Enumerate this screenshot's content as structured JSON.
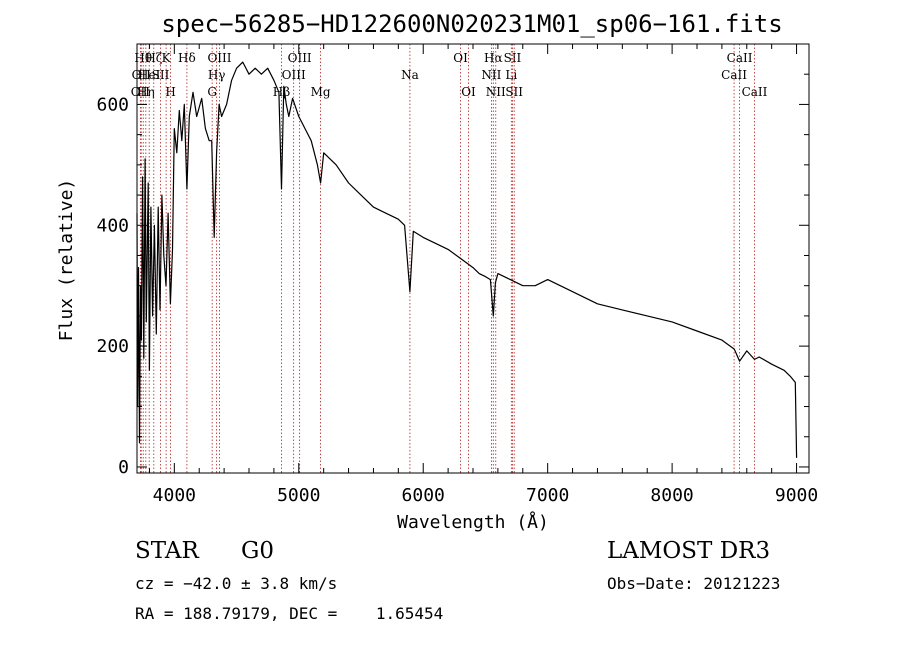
{
  "chart_data": {
    "type": "line",
    "title": "spec−56285−HD122600N020231M01_sp06−161.fits",
    "xlabel": "Wavelength (Å)",
    "ylabel": "Flux (relative)",
    "xlim": [
      3700,
      9100
    ],
    "ylim": [
      -10,
      700
    ],
    "x_ticks": [
      4000,
      5000,
      6000,
      7000,
      8000,
      9000
    ],
    "x_tick_labels": [
      "4000",
      "5000",
      "6000",
      "7000",
      "8000",
      "9000"
    ],
    "y_ticks": [
      0,
      200,
      400,
      600
    ],
    "y_tick_labels": [
      "0",
      "200",
      "400",
      "600"
    ],
    "x_minor_step": 200,
    "y_minor_step": 50,
    "grid": false,
    "line_color": "#000000",
    "marker_color": "#b22222",
    "spectrum": {
      "x": [
        3700,
        3705,
        3712,
        3720,
        3728,
        3735,
        3745,
        3755,
        3765,
        3775,
        3790,
        3800,
        3812,
        3825,
        3840,
        3855,
        3870,
        3885,
        3900,
        3915,
        3933,
        3950,
        3968,
        3985,
        4000,
        4020,
        4040,
        4060,
        4080,
        4101,
        4120,
        4150,
        4180,
        4220,
        4250,
        4280,
        4300,
        4320,
        4340,
        4360,
        4380,
        4420,
        4460,
        4500,
        4550,
        4600,
        4650,
        4700,
        4750,
        4800,
        4840,
        4861,
        4880,
        4900,
        4920,
        4950,
        5000,
        5050,
        5100,
        5150,
        5175,
        5200,
        5300,
        5400,
        5500,
        5600,
        5700,
        5800,
        5850,
        5893,
        5920,
        6000,
        6100,
        6200,
        6300,
        6400,
        6450,
        6500,
        6540,
        6563,
        6580,
        6600,
        6700,
        6800,
        6900,
        7000,
        7200,
        7400,
        7600,
        7800,
        8000,
        8200,
        8400,
        8500,
        8542,
        8600,
        8662,
        8700,
        8800,
        8900,
        8950,
        8990,
        9000
      ],
      "y": [
        420,
        100,
        330,
        40,
        300,
        210,
        480,
        180,
        510,
        240,
        470,
        160,
        430,
        250,
        400,
        220,
        430,
        260,
        450,
        350,
        300,
        420,
        270,
        360,
        560,
        520,
        590,
        540,
        600,
        460,
        580,
        620,
        580,
        610,
        560,
        540,
        540,
        380,
        520,
        600,
        580,
        600,
        640,
        660,
        670,
        650,
        660,
        650,
        660,
        640,
        620,
        460,
        630,
        600,
        580,
        610,
        580,
        560,
        540,
        500,
        470,
        520,
        500,
        470,
        450,
        430,
        420,
        410,
        400,
        290,
        390,
        380,
        370,
        360,
        345,
        330,
        320,
        315,
        310,
        250,
        305,
        320,
        310,
        300,
        300,
        310,
        290,
        270,
        260,
        250,
        240,
        225,
        210,
        195,
        175,
        192,
        178,
        182,
        170,
        160,
        150,
        140,
        15
      ]
    },
    "lines": [
      {
        "x": 3727,
        "label": "OII",
        "row": 3
      },
      {
        "x": 3734,
        "label": "OII",
        "row": 2
      },
      {
        "x": 3750,
        "label": "Hθ",
        "row": 1
      },
      {
        "x": 3771,
        "label": "Hη",
        "row": 3
      },
      {
        "x": 3798,
        "label": "HeI",
        "row": 2
      },
      {
        "x": 3835,
        "label": "Hζ",
        "row": 1
      },
      {
        "x": 3889,
        "label": "SII",
        "row": 2
      },
      {
        "x": 3934,
        "label": "K",
        "row": 1
      },
      {
        "x": 3970,
        "label": "H",
        "row": 3
      },
      {
        "x": 4101,
        "label": "Hδ",
        "row": 1
      },
      {
        "x": 4304,
        "label": "G",
        "row": 3
      },
      {
        "x": 4340,
        "label": "Hγ",
        "row": 2
      },
      {
        "x": 4363,
        "label": "OIII",
        "row": 1
      },
      {
        "x": 4861,
        "label": "Hβ",
        "row": 3
      },
      {
        "x": 4959,
        "label": "OIII",
        "row": 2
      },
      {
        "x": 5007,
        "label": "OIII",
        "row": 1
      },
      {
        "x": 5175,
        "label": "Mg",
        "row": 3
      },
      {
        "x": 5893,
        "label": "Na",
        "row": 2
      },
      {
        "x": 6300,
        "label": "OI",
        "row": 1
      },
      {
        "x": 6364,
        "label": "OI",
        "row": 3
      },
      {
        "x": 6548,
        "label": "NII",
        "row": 2
      },
      {
        "x": 6563,
        "label": "Hα",
        "row": 1
      },
      {
        "x": 6583,
        "label": "NII",
        "row": 3
      },
      {
        "x": 6708,
        "label": "Li",
        "row": 2
      },
      {
        "x": 6717,
        "label": "SII",
        "row": 1
      },
      {
        "x": 6731,
        "label": "SII",
        "row": 3
      },
      {
        "x": 8498,
        "label": "CaII",
        "row": 2
      },
      {
        "x": 8542,
        "label": "CaII",
        "row": 1
      },
      {
        "x": 8662,
        "label": "CaII",
        "row": 3
      }
    ]
  },
  "info": {
    "object_type": "STAR",
    "subclass": "G0",
    "survey": "LAMOST DR3",
    "redshift": "cz = −42.0 ± 3.8 km/s",
    "obs_date": "Obs−Date: 20121223",
    "coords": "RA = 188.79179, DEC =    1.65454"
  }
}
